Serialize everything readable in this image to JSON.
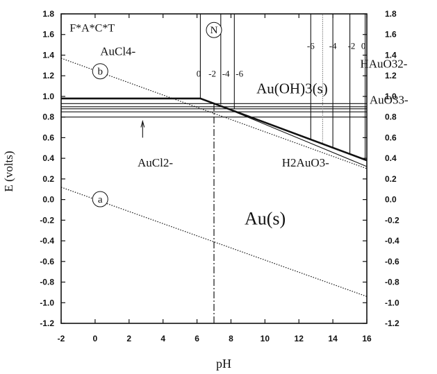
{
  "chart_data": {
    "type": "line",
    "title": "",
    "xlabel": "pH",
    "ylabel": "E (volts)",
    "xlim": [
      -2,
      16
    ],
    "ylim": [
      -1.2,
      1.8
    ],
    "x_ticks": [
      "-2",
      "0",
      "2",
      "4",
      "6",
      "8",
      "10",
      "12",
      "14",
      "16"
    ],
    "y_ticks": [
      "-1.2",
      "-1.0",
      "-0.8",
      "-0.6",
      "-0.4",
      "-0.2",
      "0.0",
      "0.2",
      "0.4",
      "0.6",
      "0.8",
      "1.0",
      "1.2",
      "1.4",
      "1.6",
      "1.8"
    ],
    "grid": false,
    "series": [
      {
        "values": [
          [
            -2,
            0.8
          ],
          [
            16,
            0.8
          ]
        ]
      },
      {
        "values": [
          [
            -2,
            0.93
          ],
          [
            16,
            0.93
          ]
        ]
      },
      {
        "values": [
          [
            -2,
            0.98
          ],
          [
            6.2,
            0.98
          ],
          [
            16,
            0.38
          ]
        ]
      },
      {
        "values": [
          [
            6.2,
            0.98
          ],
          [
            7.2,
            0.92
          ],
          [
            16,
            0.32
          ]
        ]
      },
      {
        "values": [
          [
            -2,
            0.85
          ],
          [
            16,
            0.85
          ]
        ]
      },
      {
        "values": [
          [
            -2,
            0.88
          ],
          [
            16,
            0.88
          ]
        ]
      },
      {
        "values": [
          [
            -2,
            0.9
          ],
          [
            16,
            0.9
          ]
        ]
      },
      {
        "values": [
          [
            6.2,
            0.98
          ],
          [
            6.2,
            1.8
          ]
        ]
      },
      {
        "values": [
          [
            7.4,
            0.92
          ],
          [
            7.4,
            1.8
          ]
        ]
      },
      {
        "values": [
          [
            8.2,
            0.88
          ],
          [
            8.2,
            1.8
          ]
        ]
      },
      {
        "values": [
          [
            12.7,
            0.58
          ],
          [
            12.7,
            1.8
          ]
        ]
      },
      {
        "values": [
          [
            14.0,
            0.5
          ],
          [
            14.0,
            1.8
          ]
        ]
      },
      {
        "values": [
          [
            15.0,
            0.44
          ],
          [
            15.0,
            1.8
          ]
        ]
      },
      {
        "values": [
          [
            15.9,
            0.38
          ],
          [
            15.9,
            1.8
          ]
        ]
      },
      {
        "values": [
          [
            13.4,
            0.55
          ],
          [
            13.4,
            1.8
          ]
        ]
      },
      {
        "values": [
          [
            -2,
            1.37
          ],
          [
            16,
            0.3
          ]
        ]
      },
      {
        "values": [
          [
            -2,
            0.12
          ],
          [
            16,
            -0.94
          ]
        ]
      },
      {
        "values": [
          [
            7.0,
            -1.2
          ],
          [
            7.0,
            0.93
          ]
        ]
      },
      {
        "values": [
          [
            2.8,
            0.6
          ],
          [
            2.8,
            0.76
          ]
        ]
      }
    ],
    "annotations": [
      {
        "text": "F*A*C*T",
        "x": -1.5,
        "y": 1.63
      },
      {
        "text": "AuCl4-",
        "x": 0.3,
        "y": 1.4
      },
      {
        "text": "N",
        "x": 7.0,
        "y": 1.61
      },
      {
        "text": "0",
        "x": 6.1,
        "y": 1.19
      },
      {
        "text": "-2",
        "x": 6.9,
        "y": 1.19
      },
      {
        "text": "-4",
        "x": 7.7,
        "y": 1.19
      },
      {
        "text": "-6",
        "x": 8.5,
        "y": 1.19
      },
      {
        "text": "-6",
        "x": 12.7,
        "y": 1.46
      },
      {
        "text": "-4",
        "x": 14.0,
        "y": 1.46
      },
      {
        "text": "-2",
        "x": 15.1,
        "y": 1.46
      },
      {
        "text": "0",
        "x": 15.8,
        "y": 1.46
      },
      {
        "text": "b",
        "x": 0.3,
        "y": 1.21
      },
      {
        "text": "Au(OH)3(s)",
        "x": 9.5,
        "y": 1.03
      },
      {
        "text": "HAuO32-",
        "x": 17.0,
        "y": 1.28
      },
      {
        "text": "AuO33-",
        "x": 17.3,
        "y": 0.93
      },
      {
        "text": "AuCl2-",
        "x": 2.5,
        "y": 0.32
      },
      {
        "text": "H2AuO3-",
        "x": 11.0,
        "y": 0.32
      },
      {
        "text": "a",
        "x": 0.3,
        "y": -0.03
      },
      {
        "text": "Au(s)",
        "x": 8.8,
        "y": -0.24
      }
    ]
  }
}
